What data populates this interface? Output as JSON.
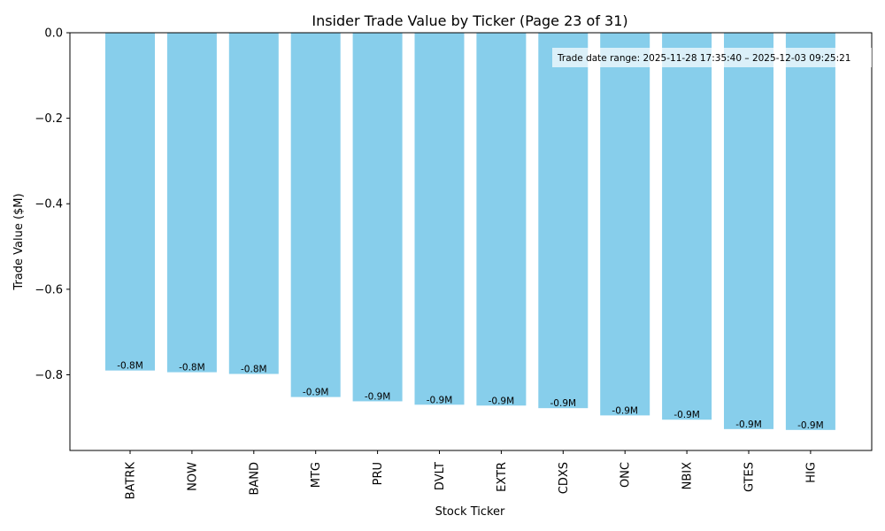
{
  "chart_data": {
    "type": "bar",
    "title": "Insider Trade Value by Ticker (Page 23 of 31)",
    "xlabel": "Stock Ticker",
    "ylabel": "Trade Value ($M)",
    "categories": [
      "BATRK",
      "NOW",
      "BAND",
      "MTG",
      "PRU",
      "DVLT",
      "EXTR",
      "CDXS",
      "ONC",
      "NBIX",
      "GTES",
      "HIG"
    ],
    "values": [
      -0.79,
      -0.794,
      -0.798,
      -0.852,
      -0.862,
      -0.87,
      -0.872,
      -0.878,
      -0.895,
      -0.905,
      -0.927,
      -0.929
    ],
    "data_labels": [
      "-0.8M",
      "-0.8M",
      "-0.8M",
      "-0.9M",
      "-0.9M",
      "-0.9M",
      "-0.9M",
      "-0.9M",
      "-0.9M",
      "-0.9M",
      "-0.9M",
      "-0.9M"
    ],
    "ylim": [
      -0.977,
      0.0
    ],
    "yticks": [
      0.0,
      -0.2,
      -0.4,
      -0.6,
      -0.8
    ],
    "ytick_labels": [
      "0.0",
      "−0.2",
      "−0.4",
      "−0.6",
      "−0.8"
    ],
    "annotation": "Trade date range: 2025-11-28 17:35:40 – 2025-12-03 09:25:21",
    "annotation_placement": "top-right",
    "grid": false,
    "bar_color": "#87CEEB"
  }
}
